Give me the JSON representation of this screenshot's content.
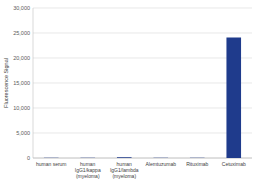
{
  "chart_data": {
    "type": "bar",
    "y_label": "Fluorescence Signal",
    "categories": [
      "human serum",
      "human IgG1/kappa (myeloma)",
      "human IgG1/lambda (myeloma)",
      "Alemtuzumab",
      "Rituximab",
      "Cetuximab"
    ],
    "values": [
      50,
      50,
      150,
      50,
      50,
      24100
    ],
    "color": "#1f3b8c",
    "ylim": [
      0,
      30000
    ],
    "yticks": [
      0,
      {
        "value": 5000,
        "label": "5,000"
      },
      {
        "value": 10000,
        "label": "10,000"
      },
      {
        "value": 15000,
        "label": "15,000"
      },
      {
        "value": 20000,
        "label": "20,000"
      },
      {
        "value": 25000,
        "label": "25,000"
      },
      {
        "value": 30000,
        "label": "30,000"
      }
    ],
    "grid": true
  }
}
